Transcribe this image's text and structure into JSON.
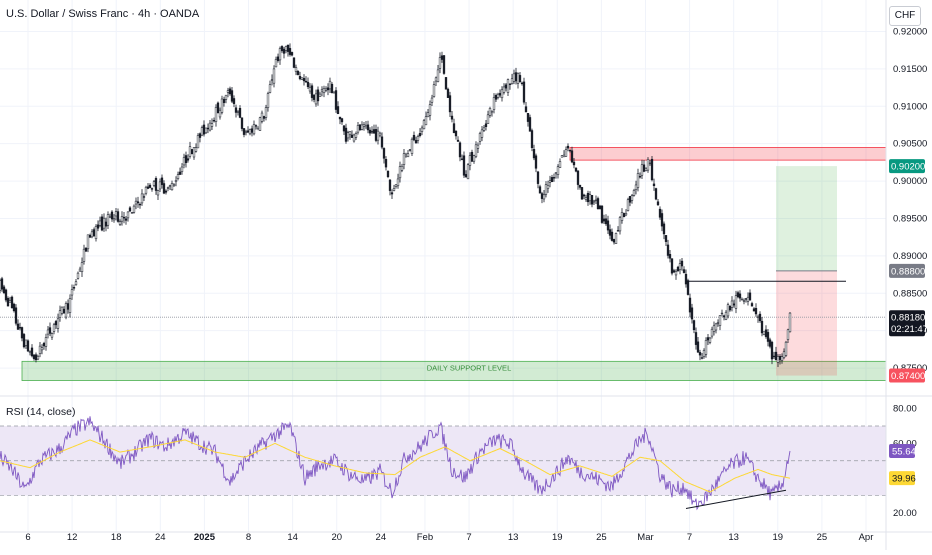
{
  "chart_data": [
    {
      "type": "candlestick",
      "title": "U.S. Dollar / Swiss Franc · 4h · OANDA",
      "currency_button": "CHF",
      "price_axis_ticks": [
        "0.92000",
        "0.91500",
        "0.91000",
        "0.90500",
        "0.90000",
        "0.89500",
        "0.89000",
        "0.88500",
        "0.88000",
        "0.87500"
      ],
      "price_axis_values": [
        0.92,
        0.915,
        0.91,
        0.905,
        0.9,
        0.895,
        0.89,
        0.885,
        0.88,
        0.875
      ],
      "ylim": [
        0.8718,
        0.9218
      ],
      "x_axis_ticks": [
        "6",
        "12",
        "18",
        "24",
        "2025",
        "8",
        "14",
        "20",
        "24",
        "Feb",
        "7",
        "13",
        "19",
        "25",
        "Mar",
        "7",
        "13",
        "19",
        "25",
        "Apr"
      ],
      "price_path": [
        {
          "bar": 0,
          "price": 0.886
        },
        {
          "bar": 10,
          "price": 0.8835
        },
        {
          "bar": 22,
          "price": 0.879
        },
        {
          "bar": 35,
          "price": 0.876
        },
        {
          "bar": 50,
          "price": 0.88
        },
        {
          "bar": 70,
          "price": 0.884
        },
        {
          "bar": 90,
          "price": 0.893
        },
        {
          "bar": 110,
          "price": 0.895
        },
        {
          "bar": 130,
          "price": 0.8955
        },
        {
          "bar": 150,
          "price": 0.8995
        },
        {
          "bar": 170,
          "price": 0.899
        },
        {
          "bar": 190,
          "price": 0.904
        },
        {
          "bar": 210,
          "price": 0.908
        },
        {
          "bar": 230,
          "price": 0.912
        },
        {
          "bar": 245,
          "price": 0.906
        },
        {
          "bar": 265,
          "price": 0.909
        },
        {
          "bar": 275,
          "price": 0.916
        },
        {
          "bar": 285,
          "price": 0.918
        },
        {
          "bar": 300,
          "price": 0.914
        },
        {
          "bar": 315,
          "price": 0.911
        },
        {
          "bar": 330,
          "price": 0.913
        },
        {
          "bar": 345,
          "price": 0.906
        },
        {
          "bar": 360,
          "price": 0.907
        },
        {
          "bar": 380,
          "price": 0.906
        },
        {
          "bar": 392,
          "price": 0.898
        },
        {
          "bar": 405,
          "price": 0.904
        },
        {
          "bar": 420,
          "price": 0.906
        },
        {
          "bar": 432,
          "price": 0.911
        },
        {
          "bar": 440,
          "price": 0.917
        },
        {
          "bar": 452,
          "price": 0.908
        },
        {
          "bar": 465,
          "price": 0.901
        },
        {
          "bar": 480,
          "price": 0.906
        },
        {
          "bar": 495,
          "price": 0.911
        },
        {
          "bar": 505,
          "price": 0.913
        },
        {
          "bar": 520,
          "price": 0.914
        },
        {
          "bar": 530,
          "price": 0.906
        },
        {
          "bar": 540,
          "price": 0.898
        },
        {
          "bar": 555,
          "price": 0.901
        },
        {
          "bar": 568,
          "price": 0.905
        },
        {
          "bar": 580,
          "price": 0.8985
        },
        {
          "bar": 595,
          "price": 0.897
        },
        {
          "bar": 612,
          "price": 0.892
        },
        {
          "bar": 625,
          "price": 0.896
        },
        {
          "bar": 638,
          "price": 0.9005
        },
        {
          "bar": 648,
          "price": 0.903
        },
        {
          "bar": 660,
          "price": 0.895
        },
        {
          "bar": 672,
          "price": 0.888
        },
        {
          "bar": 682,
          "price": 0.889
        },
        {
          "bar": 692,
          "price": 0.881
        },
        {
          "bar": 700,
          "price": 0.8765
        },
        {
          "bar": 712,
          "price": 0.88
        },
        {
          "bar": 722,
          "price": 0.882
        },
        {
          "bar": 735,
          "price": 0.884
        },
        {
          "bar": 748,
          "price": 0.885
        },
        {
          "bar": 760,
          "price": 0.881
        },
        {
          "bar": 772,
          "price": 0.8765
        },
        {
          "bar": 782,
          "price": 0.876
        },
        {
          "bar": 790,
          "price": 0.8818
        }
      ],
      "last_price": {
        "price_text": "0.88180",
        "countdown": "02:21:47",
        "price": 0.8818
      },
      "annotations": {
        "daily_support": {
          "label": "DAILY SUPPORT LEVEL",
          "price_low": 0.874,
          "price_high": 0.8755,
          "start_bar": 22,
          "end_bar": 886
        },
        "resistance_zone": {
          "price_low": 0.9028,
          "price_high": 0.9045,
          "start_bar": 570,
          "end_bar": 886
        },
        "horizontal_line": {
          "price": 0.8866,
          "start_bar": 686,
          "end_bar": 846
        },
        "trade_position": {
          "entry_price": 0.888,
          "target_price": 0.902,
          "stop_price": 0.874,
          "entry_text": "0.88800",
          "target_text": "0.90200",
          "stop_text": "0.87400"
        }
      },
      "colors": {
        "up": "#131722",
        "down": "#131722",
        "support": "#4caf50",
        "resistance": "#f23645",
        "target_badge": "#089981",
        "stop_badge": "#f7525f",
        "entry_badge": "#787b86"
      }
    },
    {
      "type": "line",
      "title": "RSI (14, close)",
      "ylim": [
        17,
        85
      ],
      "axis_ticks": [
        "80.00",
        "60.00",
        "20.00"
      ],
      "axis_values": [
        80,
        60,
        20
      ],
      "band": [
        30,
        70
      ],
      "series": [
        {
          "values_path": [
            {
              "bar": 0,
              "v": 52
            },
            {
              "bar": 12,
              "v": 45
            },
            {
              "bar": 25,
              "v": 33
            },
            {
              "bar": 40,
              "v": 50
            },
            {
              "bar": 60,
              "v": 57
            },
            {
              "bar": 75,
              "v": 68
            },
            {
              "bar": 90,
              "v": 72
            },
            {
              "bar": 105,
              "v": 61
            },
            {
              "bar": 120,
              "v": 48
            },
            {
              "bar": 135,
              "v": 55
            },
            {
              "bar": 150,
              "v": 63
            },
            {
              "bar": 165,
              "v": 58
            },
            {
              "bar": 185,
              "v": 66
            },
            {
              "bar": 200,
              "v": 60
            },
            {
              "bar": 215,
              "v": 55
            },
            {
              "bar": 230,
              "v": 38
            },
            {
              "bar": 245,
              "v": 50
            },
            {
              "bar": 260,
              "v": 58
            },
            {
              "bar": 275,
              "v": 65
            },
            {
              "bar": 290,
              "v": 70
            },
            {
              "bar": 305,
              "v": 40
            },
            {
              "bar": 320,
              "v": 48
            },
            {
              "bar": 335,
              "v": 50
            },
            {
              "bar": 350,
              "v": 42
            },
            {
              "bar": 365,
              "v": 38
            },
            {
              "bar": 380,
              "v": 44
            },
            {
              "bar": 392,
              "v": 32
            },
            {
              "bar": 405,
              "v": 52
            },
            {
              "bar": 420,
              "v": 58
            },
            {
              "bar": 440,
              "v": 70
            },
            {
              "bar": 452,
              "v": 45
            },
            {
              "bar": 465,
              "v": 40
            },
            {
              "bar": 480,
              "v": 55
            },
            {
              "bar": 495,
              "v": 62
            },
            {
              "bar": 510,
              "v": 60
            },
            {
              "bar": 525,
              "v": 42
            },
            {
              "bar": 540,
              "v": 33
            },
            {
              "bar": 555,
              "v": 42
            },
            {
              "bar": 568,
              "v": 52
            },
            {
              "bar": 580,
              "v": 44
            },
            {
              "bar": 595,
              "v": 40
            },
            {
              "bar": 612,
              "v": 35
            },
            {
              "bar": 625,
              "v": 48
            },
            {
              "bar": 640,
              "v": 62
            },
            {
              "bar": 648,
              "v": 66
            },
            {
              "bar": 660,
              "v": 42
            },
            {
              "bar": 672,
              "v": 33
            },
            {
              "bar": 685,
              "v": 35
            },
            {
              "bar": 695,
              "v": 24
            },
            {
              "bar": 705,
              "v": 28
            },
            {
              "bar": 718,
              "v": 38
            },
            {
              "bar": 730,
              "v": 47
            },
            {
              "bar": 745,
              "v": 52
            },
            {
              "bar": 758,
              "v": 40
            },
            {
              "bar": 772,
              "v": 30
            },
            {
              "bar": 782,
              "v": 36
            },
            {
              "bar": 790,
              "v": 55.64
            }
          ]
        },
        {
          "values_path": [
            {
              "bar": 0,
              "v": 50
            },
            {
              "bar": 30,
              "v": 46
            },
            {
              "bar": 60,
              "v": 55
            },
            {
              "bar": 90,
              "v": 62
            },
            {
              "bar": 120,
              "v": 55
            },
            {
              "bar": 150,
              "v": 58
            },
            {
              "bar": 185,
              "v": 62
            },
            {
              "bar": 215,
              "v": 55
            },
            {
              "bar": 245,
              "v": 52
            },
            {
              "bar": 275,
              "v": 60
            },
            {
              "bar": 305,
              "v": 52
            },
            {
              "bar": 335,
              "v": 47
            },
            {
              "bar": 365,
              "v": 43
            },
            {
              "bar": 395,
              "v": 42
            },
            {
              "bar": 420,
              "v": 52
            },
            {
              "bar": 445,
              "v": 58
            },
            {
              "bar": 470,
              "v": 50
            },
            {
              "bar": 500,
              "v": 57
            },
            {
              "bar": 525,
              "v": 50
            },
            {
              "bar": 550,
              "v": 42
            },
            {
              "bar": 580,
              "v": 47
            },
            {
              "bar": 612,
              "v": 41
            },
            {
              "bar": 640,
              "v": 52
            },
            {
              "bar": 660,
              "v": 50
            },
            {
              "bar": 685,
              "v": 38
            },
            {
              "bar": 710,
              "v": 32
            },
            {
              "bar": 735,
              "v": 40
            },
            {
              "bar": 758,
              "v": 45
            },
            {
              "bar": 772,
              "v": 42
            },
            {
              "bar": 790,
              "v": 39.96
            }
          ]
        }
      ],
      "last_values": {
        "rsi_text": "55.64",
        "ma_text": "39.96"
      },
      "divergence_line": {
        "start": {
          "bar": 686,
          "v": 22.5
        },
        "end": {
          "bar": 786,
          "v": 33
        }
      },
      "colors": {
        "rsi": "#7e57c2",
        "ma": "#fdd835",
        "band_fill": "#ede7f6",
        "divergence": "#131722"
      }
    }
  ]
}
